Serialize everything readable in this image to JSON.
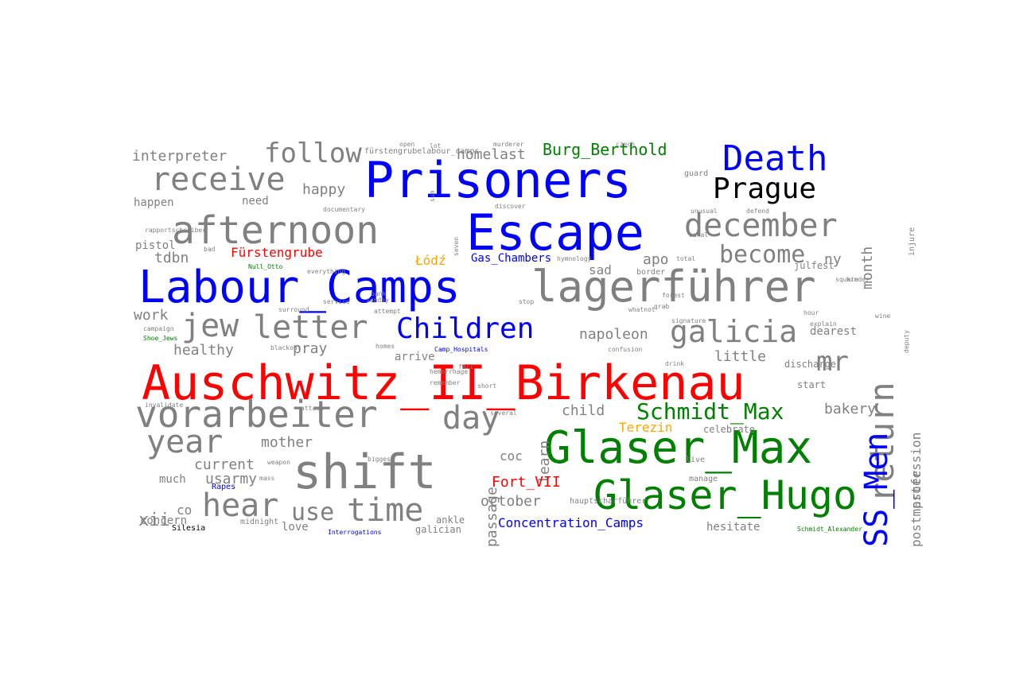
{
  "colors": {
    "grey": "#808080",
    "blue": "#0000ff",
    "red": "#ff0000",
    "green": "#008000",
    "orange": "#ffa500",
    "black": "#000000"
  },
  "words": [
    {
      "text": "Auschwitz_II_Birkenau",
      "color": "red"
    },
    {
      "text": "Prisoners",
      "color": "blue"
    },
    {
      "text": "Escape",
      "color": "blue"
    },
    {
      "text": "Labour_Camps",
      "color": "blue"
    },
    {
      "text": "Glaser_Max",
      "color": "green"
    },
    {
      "text": "Glaser_Hugo",
      "color": "green"
    },
    {
      "text": "shift",
      "color": "grey"
    },
    {
      "text": "lagerführer",
      "color": "grey"
    },
    {
      "text": "vorarbeiter",
      "color": "grey"
    },
    {
      "text": "afternoon",
      "color": "grey"
    },
    {
      "text": "Death",
      "color": "blue"
    },
    {
      "text": "return",
      "color": "grey"
    },
    {
      "text": "SS_Men",
      "color": "blue"
    },
    {
      "text": "Prague",
      "color": "black"
    },
    {
      "text": "december",
      "color": "grey"
    },
    {
      "text": "receive",
      "color": "grey"
    },
    {
      "text": "Children",
      "color": "blue"
    },
    {
      "text": "galicia",
      "color": "grey"
    },
    {
      "text": "letter",
      "color": "grey"
    },
    {
      "text": "jew",
      "color": "grey"
    },
    {
      "text": "day",
      "color": "grey"
    },
    {
      "text": "year",
      "color": "grey"
    },
    {
      "text": "hear",
      "color": "grey"
    },
    {
      "text": "time",
      "color": "grey"
    },
    {
      "text": "use",
      "color": "grey"
    },
    {
      "text": "follow",
      "color": "grey"
    },
    {
      "text": "Schmidt_Max",
      "color": "green"
    },
    {
      "text": "mr",
      "color": "grey"
    },
    {
      "text": "become",
      "color": "grey"
    },
    {
      "text": "Burg_Berthold",
      "color": "green"
    },
    {
      "text": "interpreter",
      "color": "grey"
    },
    {
      "text": "happy",
      "color": "grey"
    },
    {
      "text": "homelast",
      "color": "grey"
    },
    {
      "text": "month",
      "color": "grey"
    },
    {
      "text": "need",
      "color": "grey"
    },
    {
      "text": "happen",
      "color": "grey"
    },
    {
      "text": "Fürstengrube",
      "color": "red"
    },
    {
      "text": "Łódź",
      "color": "orange"
    },
    {
      "text": "Gas_Chambers",
      "color": "blue"
    },
    {
      "text": "tdbn",
      "color": "grey"
    },
    {
      "text": "apo",
      "color": "grey"
    },
    {
      "text": "sad",
      "color": "grey"
    },
    {
      "text": "ny",
      "color": "grey"
    },
    {
      "text": "work",
      "color": "grey"
    },
    {
      "text": "napoleon",
      "color": "grey"
    },
    {
      "text": "little",
      "color": "grey"
    },
    {
      "text": "dearest",
      "color": "grey"
    },
    {
      "text": "healthy",
      "color": "grey"
    },
    {
      "text": "pray",
      "color": "grey"
    },
    {
      "text": "arrive",
      "color": "grey"
    },
    {
      "text": "learn",
      "color": "grey"
    },
    {
      "text": "child",
      "color": "grey"
    },
    {
      "text": "Terezin",
      "color": "orange"
    },
    {
      "text": "bakery",
      "color": "grey"
    },
    {
      "text": "profession",
      "color": "grey"
    },
    {
      "text": "mother",
      "color": "grey"
    },
    {
      "text": "current",
      "color": "grey"
    },
    {
      "text": "usarmy",
      "color": "grey"
    },
    {
      "text": "much",
      "color": "grey"
    },
    {
      "text": "passage",
      "color": "grey"
    },
    {
      "text": "coc",
      "color": "grey"
    },
    {
      "text": "Fort_VII",
      "color": "red"
    },
    {
      "text": "october",
      "color": "grey"
    },
    {
      "text": "Concentration_Camps",
      "color": "blue"
    },
    {
      "text": "hesitate",
      "color": "grey"
    },
    {
      "text": "postmaster",
      "color": "grey"
    },
    {
      "text": "xii",
      "color": "grey"
    },
    {
      "text": "co",
      "color": "grey"
    },
    {
      "text": "love",
      "color": "grey"
    },
    {
      "text": "concern",
      "color": "grey"
    },
    {
      "text": "Silesia",
      "color": "black"
    },
    {
      "text": "galician",
      "color": "grey"
    },
    {
      "text": "ankle",
      "color": "grey"
    },
    {
      "text": "discharge",
      "color": "grey"
    },
    {
      "text": "start",
      "color": "grey"
    },
    {
      "text": "celebrate",
      "color": "grey"
    },
    {
      "text": "julfest",
      "color": "grey"
    },
    {
      "text": "border",
      "color": "grey"
    },
    {
      "text": "fürstengrubelabour_camps",
      "color": "grey"
    },
    {
      "text": "injure",
      "color": "grey"
    },
    {
      "text": "Camp_Hospitals",
      "color": "blue"
    },
    {
      "text": "Schmidt_Alexander",
      "color": "green"
    },
    {
      "text": "Interrogations",
      "color": "blue"
    },
    {
      "text": "Null_Otto",
      "color": "green"
    },
    {
      "text": "Shoe_Jews",
      "color": "green"
    },
    {
      "text": "Rapes",
      "color": "blue"
    },
    {
      "text": "midnight",
      "color": "grey"
    },
    {
      "text": "hemorrhage",
      "color": "grey"
    },
    {
      "text": "remember",
      "color": "grey"
    },
    {
      "text": "several",
      "color": "grey"
    },
    {
      "text": "biggest",
      "color": "grey"
    },
    {
      "text": "everything",
      "color": "grey"
    },
    {
      "text": "documentary",
      "color": "grey"
    },
    {
      "text": "rapportschreiber",
      "color": "grey"
    },
    {
      "text": "pistol",
      "color": "grey"
    },
    {
      "text": "bad",
      "color": "grey"
    },
    {
      "text": "guard",
      "color": "grey"
    },
    {
      "text": "live",
      "color": "grey"
    },
    {
      "text": "manage",
      "color": "grey"
    },
    {
      "text": "hauptscharführer",
      "color": "grey"
    },
    {
      "text": "attempt",
      "color": "grey"
    },
    {
      "text": "signature",
      "color": "grey"
    },
    {
      "text": "confusion",
      "color": "grey"
    },
    {
      "text": "drink",
      "color": "grey"
    },
    {
      "text": "explain",
      "color": "grey"
    },
    {
      "text": "deputy",
      "color": "grey"
    },
    {
      "text": "campaign",
      "color": "grey"
    },
    {
      "text": "surround",
      "color": "grey"
    },
    {
      "text": "service",
      "color": "grey"
    },
    {
      "text": "blackout",
      "color": "grey"
    },
    {
      "text": "mass",
      "color": "grey"
    },
    {
      "text": "weapon",
      "color": "grey"
    },
    {
      "text": "invalidate",
      "color": "grey"
    },
    {
      "text": "attack",
      "color": "grey"
    },
    {
      "text": "unusual",
      "color": "grey"
    },
    {
      "text": "defend",
      "color": "grey"
    },
    {
      "text": "total",
      "color": "grey"
    },
    {
      "text": "square",
      "color": "grey"
    },
    {
      "text": "czech",
      "color": "grey"
    },
    {
      "text": "murderer",
      "color": "grey"
    },
    {
      "text": "forest",
      "color": "grey"
    },
    {
      "text": "wine",
      "color": "grey"
    },
    {
      "text": "grab",
      "color": "grey"
    },
    {
      "text": "whatnot",
      "color": "grey"
    },
    {
      "text": "hour",
      "color": "grey"
    },
    {
      "text": "open",
      "color": "grey"
    },
    {
      "text": "lot",
      "color": "grey"
    },
    {
      "text": "bank",
      "color": "grey"
    },
    {
      "text": "fall",
      "color": "grey"
    },
    {
      "text": "short",
      "color": "grey"
    },
    {
      "text": "discover",
      "color": "grey"
    },
    {
      "text": "stop",
      "color": "grey"
    },
    {
      "text": "hymnology",
      "color": "grey"
    },
    {
      "text": "sum",
      "color": "grey"
    },
    {
      "text": "seven",
      "color": "grey"
    },
    {
      "text": "sunday",
      "color": "grey"
    },
    {
      "text": "homes",
      "color": "grey"
    },
    {
      "text": "canal",
      "color": "grey"
    },
    {
      "text": "kinder",
      "color": "grey"
    }
  ]
}
